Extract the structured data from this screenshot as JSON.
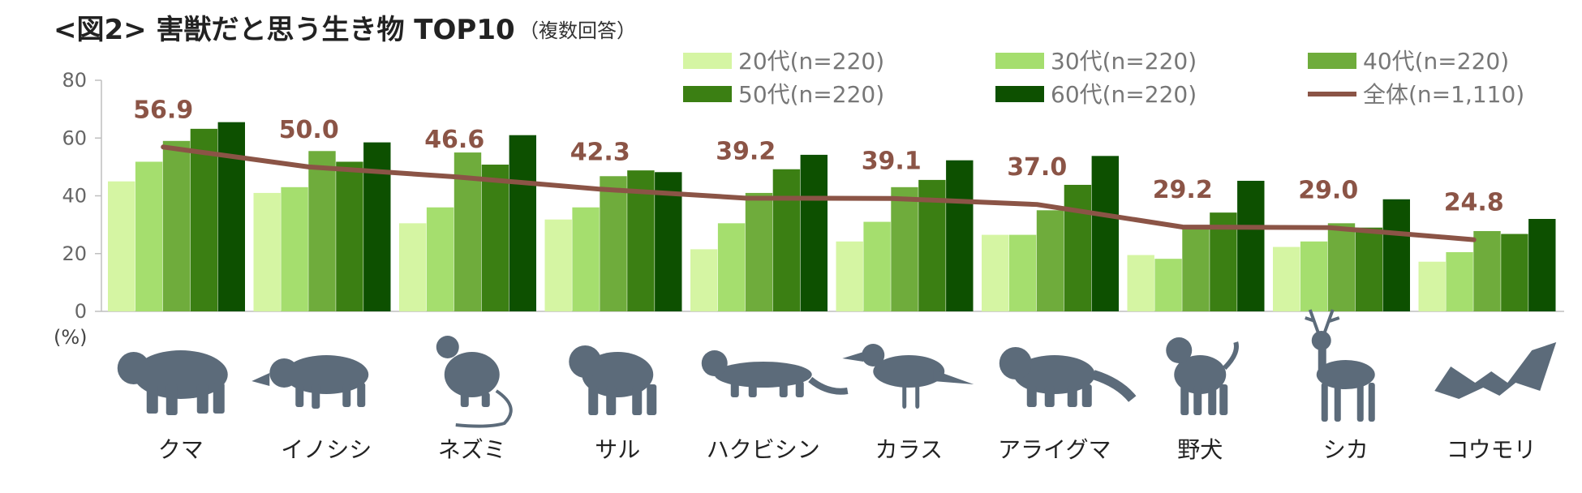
{
  "chart_data": {
    "type": "bar",
    "title": "<図2> 害獣だと思う生き物 TOP10",
    "subtitle": "（複数回答）",
    "unit_label": "(%)",
    "ylim": [
      0,
      80
    ],
    "yticks": [
      0,
      20,
      40,
      60,
      80
    ],
    "categories": [
      "クマ",
      "イノシシ",
      "ネズミ",
      "サル",
      "ハクビシン",
      "カラス",
      "アライグマ",
      "野犬",
      "シカ",
      "コウモリ"
    ],
    "icons": [
      "bear-icon",
      "boar-icon",
      "rat-icon",
      "monkey-icon",
      "masked-palm-civet-icon",
      "crow-icon",
      "raccoon-icon",
      "stray-dog-icon",
      "deer-icon",
      "bat-icon"
    ],
    "series": [
      {
        "name": "20代(n=220)",
        "color": "#d5f5a3",
        "values": [
          45.0,
          41.0,
          30.5,
          31.8,
          21.5,
          24.2,
          26.5,
          19.5,
          22.3,
          17.2
        ]
      },
      {
        "name": "30代(n=220)",
        "color": "#a5de6e",
        "values": [
          51.8,
          43.0,
          36.0,
          36.0,
          30.5,
          31.0,
          26.5,
          18.2,
          24.2,
          20.5
        ]
      },
      {
        "name": "40代(n=220)",
        "color": "#6fac3c",
        "values": [
          59.0,
          55.5,
          55.0,
          46.8,
          41.0,
          43.0,
          35.0,
          29.8,
          30.5,
          27.8
        ]
      },
      {
        "name": "50代(n=220)",
        "color": "#3b7f13",
        "values": [
          63.2,
          51.8,
          50.8,
          48.8,
          49.2,
          45.5,
          43.8,
          34.2,
          29.0,
          26.8
        ]
      },
      {
        "name": "60代(n=220)",
        "color": "#0d5000",
        "values": [
          65.5,
          58.5,
          61.0,
          48.2,
          54.2,
          52.3,
          53.8,
          45.2,
          38.8,
          32.0
        ]
      }
    ],
    "line_series": {
      "name": "全体(n=1,110)",
      "color": "#8b5446",
      "values": [
        56.9,
        50.0,
        46.6,
        42.3,
        39.2,
        39.1,
        37.0,
        29.2,
        29.0,
        24.8
      ],
      "labels": [
        "56.9",
        "50.0",
        "46.6",
        "42.3",
        "39.2",
        "39.1",
        "37.0",
        "29.2",
        "29.0",
        "24.8"
      ]
    },
    "legend_position": "top-right",
    "grid": false
  }
}
